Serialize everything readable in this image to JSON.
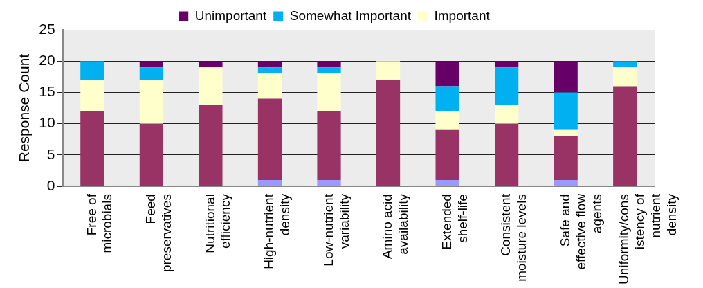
{
  "chart_data": {
    "type": "bar",
    "stacked": true,
    "ylabel": "Response Count",
    "categories": [
      "Free of microbials",
      "Feed preservatives",
      "Nutritional efficiency",
      "High-nutrient density",
      "Low-nutrient variability",
      "Amino acid availability",
      "Extended shelf-life",
      "Consistent moisture levels",
      "Safe and effective flow agents",
      "Uniformity/consistency of nutrient density"
    ],
    "series": [
      {
        "color": "#9999ff",
        "values": [
          0,
          0,
          0,
          1,
          1,
          0,
          1,
          0,
          1,
          0
        ]
      },
      {
        "color": "#993366",
        "values": [
          12,
          10,
          13,
          13,
          11,
          17,
          8,
          10,
          7,
          16
        ]
      },
      {
        "name": "Important",
        "color": "#ffffcc",
        "values": [
          5,
          7,
          6,
          4,
          6,
          3,
          3,
          3,
          1,
          3
        ]
      },
      {
        "name": "Somewhat Important",
        "color": "#00b0f0",
        "values": [
          3,
          2,
          0,
          1,
          1,
          0,
          4,
          6,
          6,
          1
        ]
      },
      {
        "name": "Unimportant",
        "color": "#660066",
        "values": [
          0,
          1,
          1,
          1,
          1,
          0,
          4,
          1,
          5,
          0
        ]
      }
    ],
    "ylim": [
      0,
      25
    ],
    "yticks": [
      0,
      5,
      10,
      15,
      20,
      25
    ],
    "grid": "y",
    "legend": "top"
  }
}
